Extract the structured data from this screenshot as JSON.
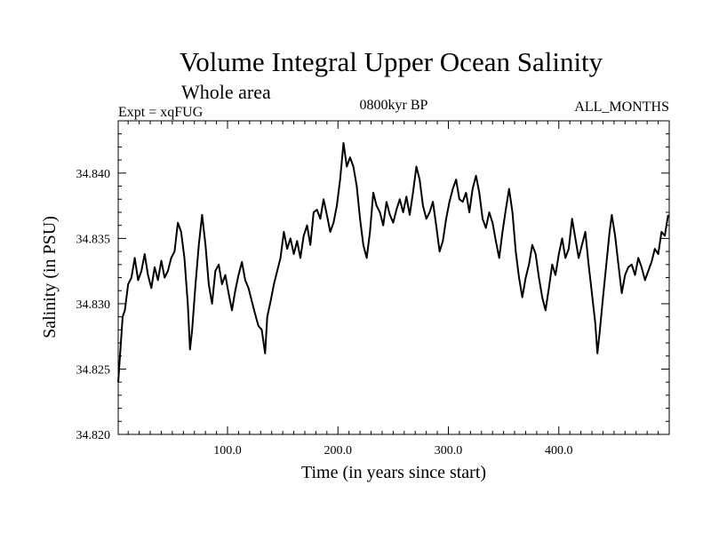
{
  "chart_data": {
    "type": "line",
    "title": "Volume Integral Upper Ocean Salinity",
    "subtitle": "Whole area",
    "experiment": "Expt = xqFUG",
    "period": "0800kyr BP",
    "months": "ALL_MONTHS",
    "xlabel": "Time (in years since start)",
    "ylabel": "Salinity (in PSU)",
    "xlim": [
      1,
      500
    ],
    "ylim": [
      34.82,
      34.844
    ],
    "x_ticks": [
      {
        "value": 100,
        "label": "100.0"
      },
      {
        "value": 200,
        "label": "200.0"
      },
      {
        "value": 300,
        "label": "300.0"
      },
      {
        "value": 400,
        "label": "400.0"
      }
    ],
    "y_ticks": [
      {
        "value": 34.82,
        "label": "34.820"
      },
      {
        "value": 34.825,
        "label": "34.825"
      },
      {
        "value": 34.83,
        "label": "34.830"
      },
      {
        "value": 34.835,
        "label": "34.835"
      },
      {
        "value": 34.84,
        "label": "34.840"
      }
    ],
    "series": [
      {
        "name": "salinity",
        "color": "#000000",
        "points": [
          [
            1,
            34.824
          ],
          [
            3,
            34.8265
          ],
          [
            5,
            34.829
          ],
          [
            7,
            34.8295
          ],
          [
            10,
            34.8315
          ],
          [
            13,
            34.832
          ],
          [
            16,
            34.8335
          ],
          [
            19,
            34.8318
          ],
          [
            22,
            34.8325
          ],
          [
            25,
            34.8338
          ],
          [
            28,
            34.8322
          ],
          [
            31,
            34.8312
          ],
          [
            34,
            34.8328
          ],
          [
            37,
            34.8318
          ],
          [
            40,
            34.8333
          ],
          [
            43,
            34.832
          ],
          [
            46,
            34.8325
          ],
          [
            49,
            34.8335
          ],
          [
            52,
            34.834
          ],
          [
            55,
            34.8362
          ],
          [
            58,
            34.8355
          ],
          [
            61,
            34.8335
          ],
          [
            64,
            34.83
          ],
          [
            66,
            34.8265
          ],
          [
            68,
            34.828
          ],
          [
            71,
            34.8315
          ],
          [
            74,
            34.8345
          ],
          [
            77,
            34.8368
          ],
          [
            80,
            34.8345
          ],
          [
            83,
            34.8315
          ],
          [
            86,
            34.83
          ],
          [
            89,
            34.8325
          ],
          [
            92,
            34.833
          ],
          [
            95,
            34.8315
          ],
          [
            98,
            34.8322
          ],
          [
            101,
            34.8308
          ],
          [
            104,
            34.8295
          ],
          [
            107,
            34.831
          ],
          [
            110,
            34.8322
          ],
          [
            113,
            34.8332
          ],
          [
            116,
            34.8318
          ],
          [
            119,
            34.8312
          ],
          [
            122,
            34.8302
          ],
          [
            125,
            34.8292
          ],
          [
            128,
            34.8283
          ],
          [
            131,
            34.828
          ],
          [
            134,
            34.8262
          ],
          [
            136,
            34.829
          ],
          [
            139,
            34.8302
          ],
          [
            142,
            34.8315
          ],
          [
            145,
            34.8325
          ],
          [
            148,
            34.8335
          ],
          [
            151,
            34.8355
          ],
          [
            154,
            34.8342
          ],
          [
            157,
            34.835
          ],
          [
            160,
            34.8338
          ],
          [
            163,
            34.8348
          ],
          [
            166,
            34.8335
          ],
          [
            169,
            34.8352
          ],
          [
            172,
            34.836
          ],
          [
            175,
            34.8345
          ],
          [
            178,
            34.837
          ],
          [
            181,
            34.8372
          ],
          [
            184,
            34.8365
          ],
          [
            187,
            34.838
          ],
          [
            190,
            34.8368
          ],
          [
            193,
            34.8355
          ],
          [
            196,
            34.8362
          ],
          [
            199,
            34.8375
          ],
          [
            202,
            34.8395
          ],
          [
            205,
            34.8423
          ],
          [
            208,
            34.8405
          ],
          [
            211,
            34.8412
          ],
          [
            214,
            34.8405
          ],
          [
            217,
            34.839
          ],
          [
            220,
            34.8365
          ],
          [
            223,
            34.8345
          ],
          [
            226,
            34.8335
          ],
          [
            229,
            34.8355
          ],
          [
            232,
            34.8385
          ],
          [
            235,
            34.8375
          ],
          [
            238,
            34.837
          ],
          [
            241,
            34.836
          ],
          [
            244,
            34.8378
          ],
          [
            247,
            34.8368
          ],
          [
            250,
            34.8362
          ],
          [
            253,
            34.8372
          ],
          [
            256,
            34.838
          ],
          [
            259,
            34.837
          ],
          [
            262,
            34.8382
          ],
          [
            265,
            34.8368
          ],
          [
            268,
            34.8385
          ],
          [
            271,
            34.8405
          ],
          [
            274,
            34.8395
          ],
          [
            277,
            34.8375
          ],
          [
            280,
            34.8365
          ],
          [
            283,
            34.837
          ],
          [
            286,
            34.8378
          ],
          [
            289,
            34.836
          ],
          [
            292,
            34.834
          ],
          [
            295,
            34.8348
          ],
          [
            298,
            34.8365
          ],
          [
            301,
            34.8378
          ],
          [
            304,
            34.8388
          ],
          [
            307,
            34.8395
          ],
          [
            310,
            34.838
          ],
          [
            313,
            34.8378
          ],
          [
            316,
            34.8385
          ],
          [
            319,
            34.837
          ],
          [
            322,
            34.8388
          ],
          [
            325,
            34.8398
          ],
          [
            328,
            34.8385
          ],
          [
            331,
            34.8365
          ],
          [
            334,
            34.8358
          ],
          [
            337,
            34.837
          ],
          [
            340,
            34.8362
          ],
          [
            343,
            34.8348
          ],
          [
            346,
            34.8335
          ],
          [
            349,
            34.8355
          ],
          [
            352,
            34.8372
          ],
          [
            355,
            34.8388
          ],
          [
            358,
            34.837
          ],
          [
            361,
            34.834
          ],
          [
            364,
            34.832
          ],
          [
            367,
            34.8305
          ],
          [
            370,
            34.832
          ],
          [
            373,
            34.833
          ],
          [
            376,
            34.8345
          ],
          [
            379,
            34.8338
          ],
          [
            382,
            34.832
          ],
          [
            385,
            34.8305
          ],
          [
            388,
            34.8295
          ],
          [
            391,
            34.8312
          ],
          [
            394,
            34.833
          ],
          [
            397,
            34.8322
          ],
          [
            400,
            34.8338
          ],
          [
            403,
            34.835
          ],
          [
            406,
            34.8335
          ],
          [
            409,
            34.8342
          ],
          [
            412,
            34.8365
          ],
          [
            415,
            34.835
          ],
          [
            418,
            34.8335
          ],
          [
            421,
            34.8345
          ],
          [
            424,
            34.8355
          ],
          [
            427,
            34.833
          ],
          [
            430,
            34.8308
          ],
          [
            433,
            34.8285
          ],
          [
            435,
            34.8262
          ],
          [
            437,
            34.8278
          ],
          [
            440,
            34.8305
          ],
          [
            443,
            34.833
          ],
          [
            446,
            34.8355
          ],
          [
            448,
            34.8368
          ],
          [
            451,
            34.8352
          ],
          [
            454,
            34.833
          ],
          [
            457,
            34.8308
          ],
          [
            460,
            34.8322
          ],
          [
            463,
            34.8328
          ],
          [
            466,
            34.833
          ],
          [
            469,
            34.8322
          ],
          [
            472,
            34.8335
          ],
          [
            475,
            34.8328
          ],
          [
            478,
            34.8318
          ],
          [
            481,
            34.8325
          ],
          [
            484,
            34.8332
          ],
          [
            487,
            34.8342
          ],
          [
            490,
            34.8338
          ],
          [
            493,
            34.8355
          ],
          [
            496,
            34.8352
          ],
          [
            499,
            34.8368
          ]
        ]
      }
    ]
  }
}
